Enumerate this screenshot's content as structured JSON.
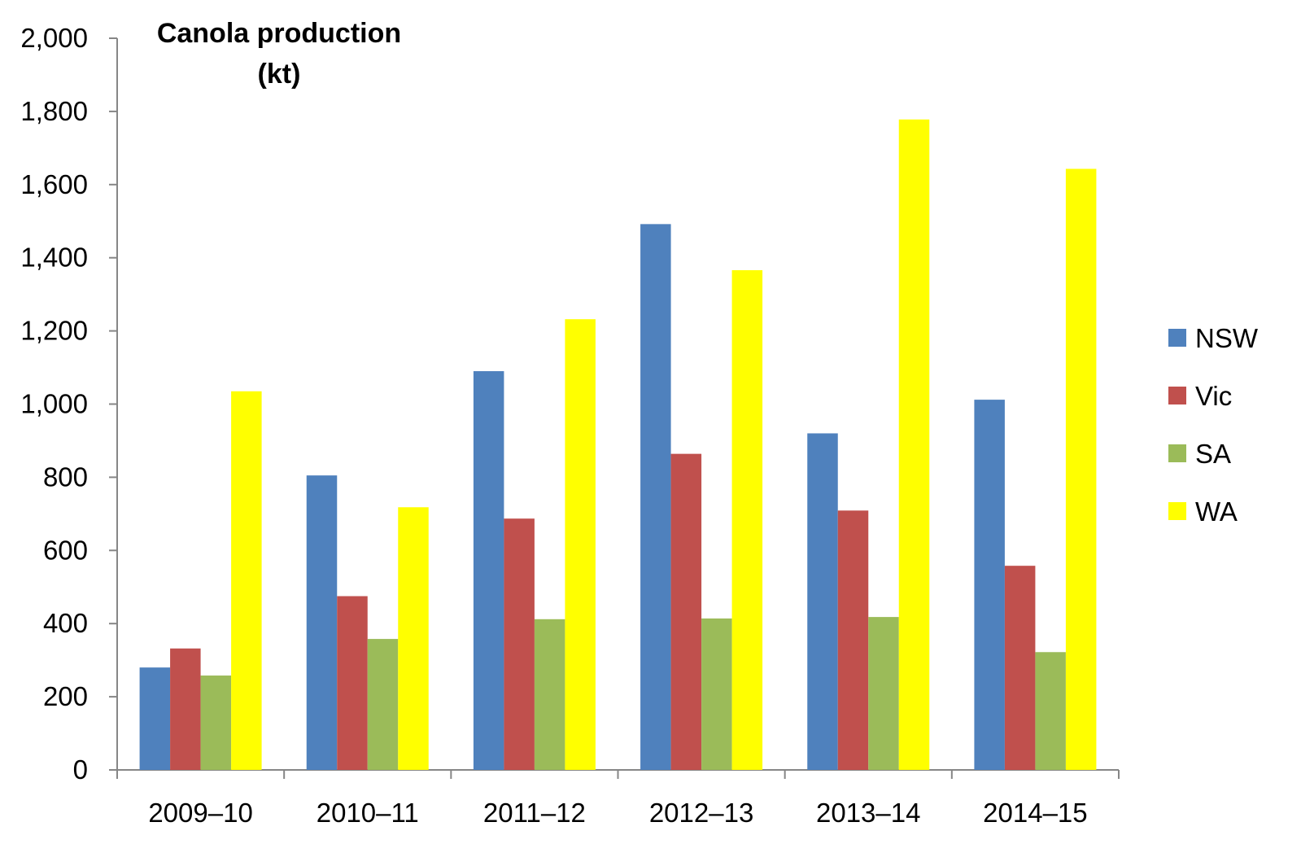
{
  "chart_data": {
    "type": "bar",
    "title": "Canola production",
    "title_unit": "(kt)",
    "categories": [
      "2009–10",
      "2010–11",
      "2011–12",
      "2012–13",
      "2013–14",
      "2014–15"
    ],
    "series": [
      {
        "name": "NSW",
        "color": "#4F81BD",
        "values": [
          280,
          805,
          1090,
          1492,
          920,
          1012
        ]
      },
      {
        "name": "Vic",
        "color": "#C0504D",
        "values": [
          332,
          475,
          687,
          864,
          709,
          558
        ]
      },
      {
        "name": "SA",
        "color": "#9BBB59",
        "values": [
          258,
          358,
          412,
          414,
          418,
          322
        ]
      },
      {
        "name": "WA",
        "color": "#FFFF00",
        "values": [
          1035,
          718,
          1232,
          1366,
          1778,
          1643
        ]
      }
    ],
    "ylim": [
      0,
      2000
    ],
    "yticks": [
      "0",
      "200",
      "400",
      "600",
      "800",
      "1,000",
      "1,200",
      "1,400",
      "1,600",
      "1,800",
      "2,000"
    ],
    "grid": false,
    "legend_position": "right"
  }
}
